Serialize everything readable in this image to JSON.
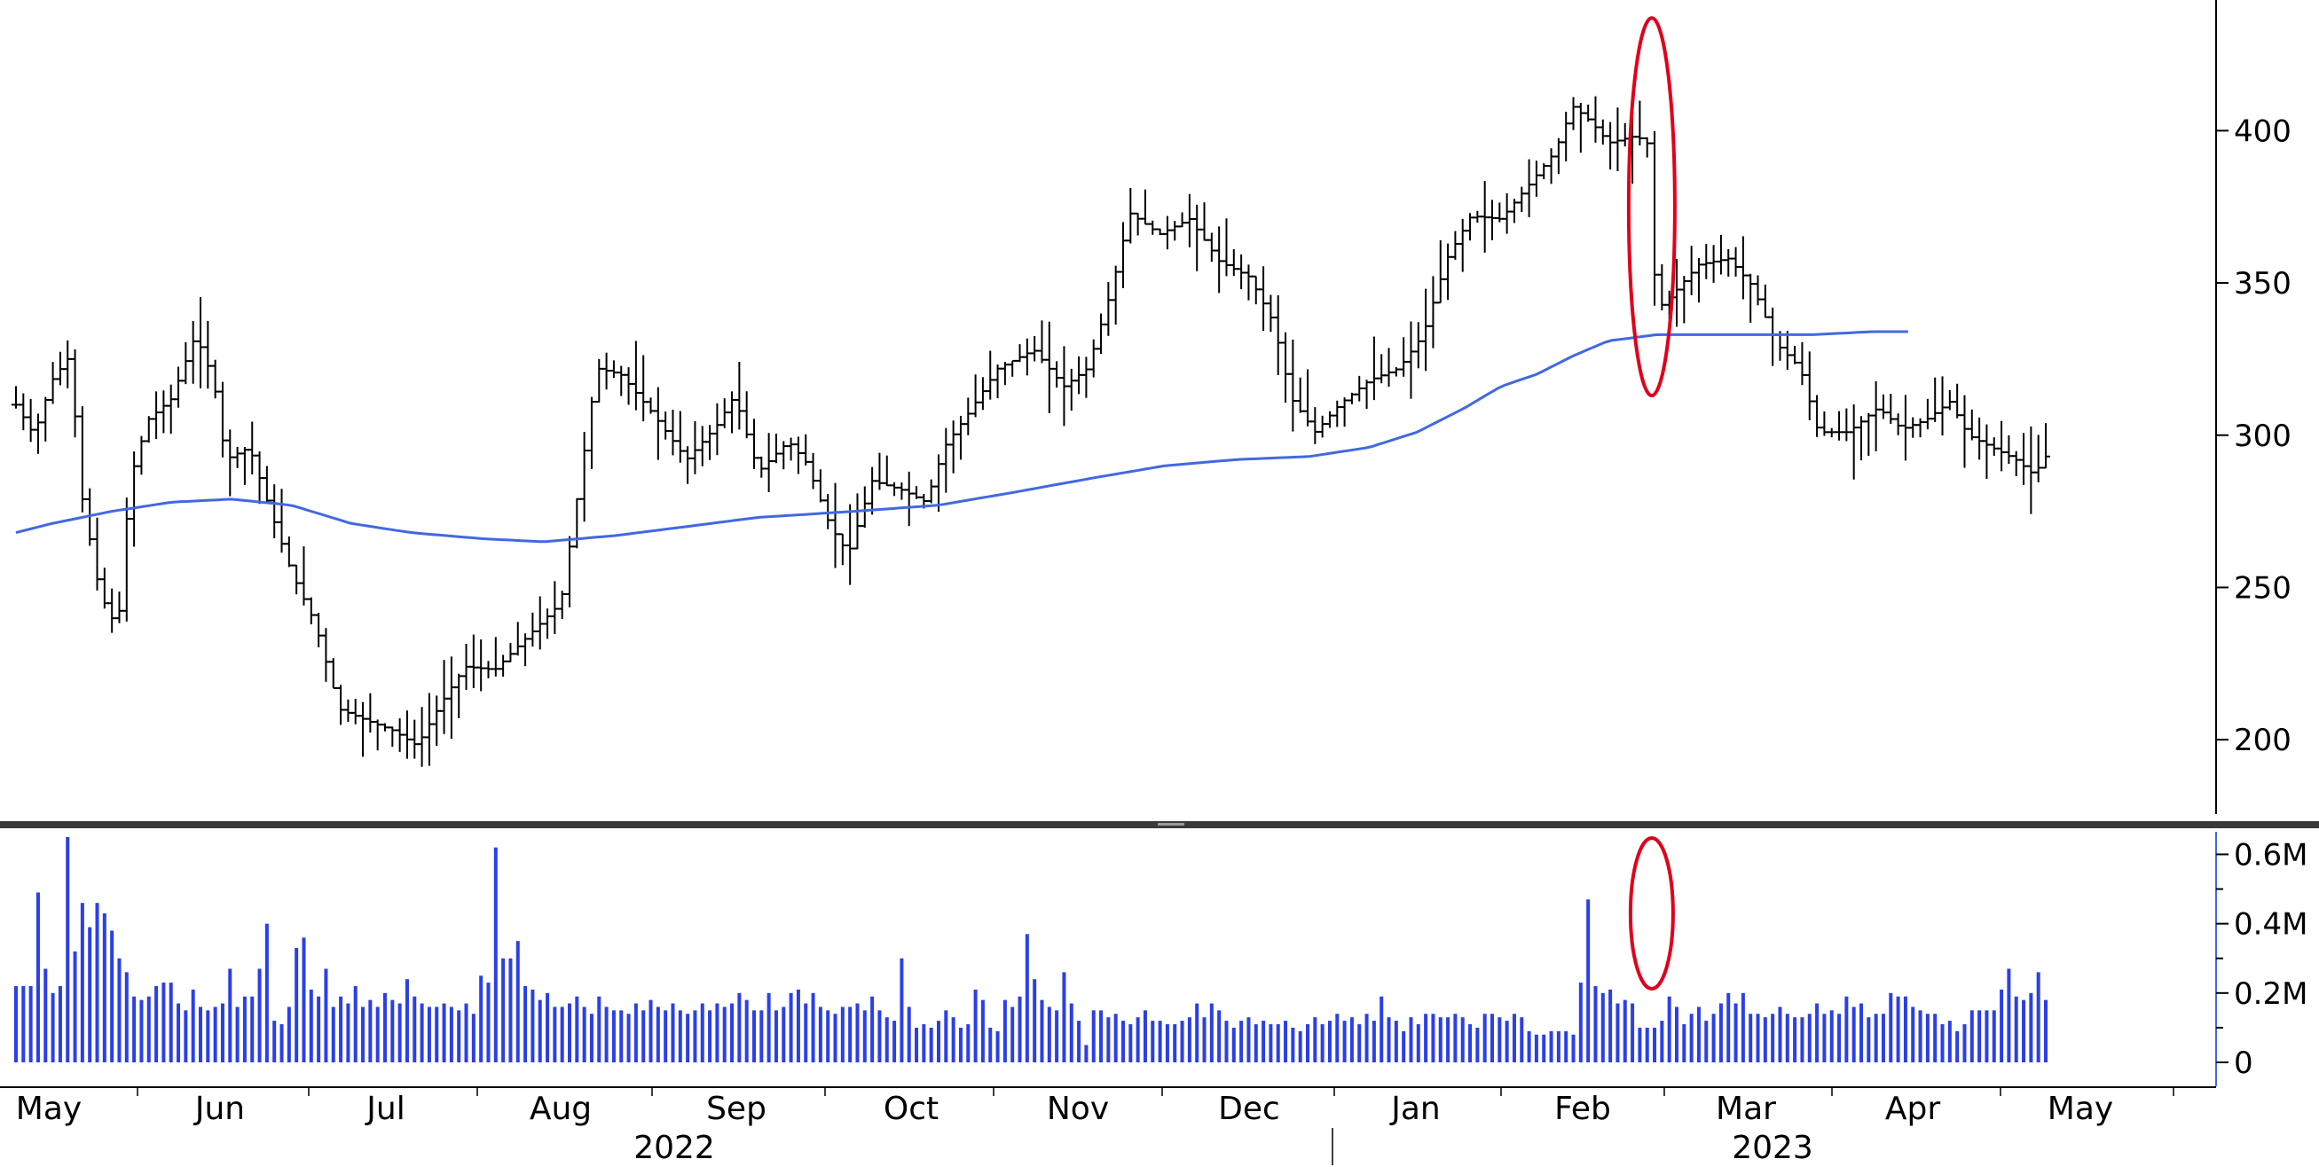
{
  "chart_data": [
    {
      "type": "ohlc",
      "panel": "price",
      "y_axis": {
        "side": "right",
        "ylim": [
          175,
          440
        ],
        "ticks": [
          200,
          250,
          300,
          350,
          400
        ],
        "tick_labels": [
          "200",
          "250",
          "300",
          "350",
          "400"
        ]
      },
      "grid": false,
      "colors": {
        "bars": "#000000",
        "moving_average": "#4169e1",
        "highlight": "#e0001b"
      },
      "moving_average": [
        {
          "t": 0,
          "v": 268
        },
        {
          "t": 0.3,
          "v": 271
        },
        {
          "t": 0.8,
          "v": 275
        },
        {
          "t": 1.3,
          "v": 278
        },
        {
          "t": 1.8,
          "v": 279
        },
        {
          "t": 2.3,
          "v": 277
        },
        {
          "t": 2.8,
          "v": 271
        },
        {
          "t": 3.3,
          "v": 268
        },
        {
          "t": 3.9,
          "v": 266
        },
        {
          "t": 4.4,
          "v": 265
        },
        {
          "t": 5,
          "v": 267
        },
        {
          "t": 5.6,
          "v": 270
        },
        {
          "t": 6.2,
          "v": 273
        },
        {
          "t": 7,
          "v": 275
        },
        {
          "t": 7.7,
          "v": 277
        },
        {
          "t": 8.3,
          "v": 281
        },
        {
          "t": 9,
          "v": 286
        },
        {
          "t": 9.6,
          "v": 290
        },
        {
          "t": 10.2,
          "v": 292
        },
        {
          "t": 10.8,
          "v": 293
        },
        {
          "t": 11.3,
          "v": 296
        },
        {
          "t": 11.7,
          "v": 301
        },
        {
          "t": 12.1,
          "v": 309
        },
        {
          "t": 12.4,
          "v": 316
        },
        {
          "t": 12.7,
          "v": 320
        },
        {
          "t": 13.0,
          "v": 326
        },
        {
          "t": 13.3,
          "v": 331
        },
        {
          "t": 13.7,
          "v": 333
        },
        {
          "t": 14.4,
          "v": 333
        },
        {
          "t": 15.0,
          "v": 333
        },
        {
          "t": 15.5,
          "v": 334
        },
        {
          "t": 15.8,
          "v": 334
        }
      ],
      "price_path": [
        {
          "t": 0,
          "v": 310
        },
        {
          "t": 0.15,
          "v": 300
        },
        {
          "t": 0.3,
          "v": 318
        },
        {
          "t": 0.45,
          "v": 326
        },
        {
          "t": 0.55,
          "v": 280
        },
        {
          "t": 0.7,
          "v": 248
        },
        {
          "t": 0.85,
          "v": 236
        },
        {
          "t": 0.95,
          "v": 285
        },
        {
          "t": 1.1,
          "v": 305
        },
        {
          "t": 1.3,
          "v": 312
        },
        {
          "t": 1.5,
          "v": 333
        },
        {
          "t": 1.65,
          "v": 318
        },
        {
          "t": 1.75,
          "v": 292
        },
        {
          "t": 1.95,
          "v": 296
        },
        {
          "t": 2.1,
          "v": 278
        },
        {
          "t": 2.3,
          "v": 255
        },
        {
          "t": 2.5,
          "v": 238
        },
        {
          "t": 2.7,
          "v": 210
        },
        {
          "t": 2.95,
          "v": 206
        },
        {
          "t": 3.15,
          "v": 203
        },
        {
          "t": 3.35,
          "v": 198
        },
        {
          "t": 3.55,
          "v": 212
        },
        {
          "t": 3.75,
          "v": 224
        },
        {
          "t": 4.0,
          "v": 223
        },
        {
          "t": 4.3,
          "v": 235
        },
        {
          "t": 4.55,
          "v": 245
        },
        {
          "t": 4.7,
          "v": 283
        },
        {
          "t": 4.85,
          "v": 322
        },
        {
          "t": 5.05,
          "v": 320
        },
        {
          "t": 5.3,
          "v": 308
        },
        {
          "t": 5.6,
          "v": 292
        },
        {
          "t": 5.85,
          "v": 303
        },
        {
          "t": 6.0,
          "v": 313
        },
        {
          "t": 6.2,
          "v": 288
        },
        {
          "t": 6.45,
          "v": 298
        },
        {
          "t": 6.6,
          "v": 291
        },
        {
          "t": 6.8,
          "v": 270
        },
        {
          "t": 6.95,
          "v": 261
        },
        {
          "t": 7.15,
          "v": 285
        },
        {
          "t": 7.4,
          "v": 282
        },
        {
          "t": 7.6,
          "v": 278
        },
        {
          "t": 7.75,
          "v": 296
        },
        {
          "t": 7.95,
          "v": 307
        },
        {
          "t": 8.2,
          "v": 322
        },
        {
          "t": 8.5,
          "v": 328
        },
        {
          "t": 8.75,
          "v": 316
        },
        {
          "t": 8.95,
          "v": 322
        },
        {
          "t": 9.15,
          "v": 348
        },
        {
          "t": 9.3,
          "v": 373
        },
        {
          "t": 9.55,
          "v": 366
        },
        {
          "t": 9.8,
          "v": 371
        },
        {
          "t": 10.05,
          "v": 357
        },
        {
          "t": 10.3,
          "v": 352
        },
        {
          "t": 10.5,
          "v": 337
        },
        {
          "t": 10.65,
          "v": 312
        },
        {
          "t": 10.85,
          "v": 301
        },
        {
          "t": 11.05,
          "v": 310
        },
        {
          "t": 11.3,
          "v": 318
        },
        {
          "t": 11.55,
          "v": 322
        },
        {
          "t": 11.75,
          "v": 333
        },
        {
          "t": 11.95,
          "v": 358
        },
        {
          "t": 12.15,
          "v": 372
        },
        {
          "t": 12.4,
          "v": 371
        },
        {
          "t": 12.65,
          "v": 383
        },
        {
          "t": 12.85,
          "v": 393
        },
        {
          "t": 13.0,
          "v": 408
        },
        {
          "t": 13.15,
          "v": 403
        },
        {
          "t": 13.3,
          "v": 396
        },
        {
          "t": 13.5,
          "v": 398
        },
        {
          "t": 13.62,
          "v": 397
        },
        {
          "t": 13.7,
          "v": 341
        },
        {
          "t": 13.85,
          "v": 347
        },
        {
          "t": 14.05,
          "v": 356
        },
        {
          "t": 14.3,
          "v": 358
        },
        {
          "t": 14.5,
          "v": 349
        },
        {
          "t": 14.7,
          "v": 330
        },
        {
          "t": 14.9,
          "v": 322
        },
        {
          "t": 15.05,
          "v": 301
        },
        {
          "t": 15.3,
          "v": 301
        },
        {
          "t": 15.55,
          "v": 309
        },
        {
          "t": 15.75,
          "v": 302
        },
        {
          "t": 15.95,
          "v": 305
        },
        {
          "t": 16.15,
          "v": 311
        },
        {
          "t": 16.3,
          "v": 300
        },
        {
          "t": 16.5,
          "v": 296
        },
        {
          "t": 16.7,
          "v": 292
        },
        {
          "t": 16.85,
          "v": 287
        },
        {
          "t": 16.95,
          "v": 293
        }
      ],
      "highlight_ellipse": {
        "center_t": 13.66,
        "y_range": [
          313,
          437
        ]
      }
    },
    {
      "type": "bar",
      "panel": "volume",
      "y_axis": {
        "side": "right",
        "ylim": [
          0,
          0.66
        ],
        "ticks": [
          0,
          0.2,
          0.4,
          0.6
        ],
        "tick_labels": [
          "0",
          "0.2M",
          "0.4M",
          "0.6M"
        ],
        "unit": "millions"
      },
      "colors": {
        "bars": "#2b3fe8",
        "highlight": "#e0001b"
      },
      "values": [
        0.22,
        0.22,
        0.22,
        0.49,
        0.27,
        0.2,
        0.22,
        0.65,
        0.32,
        0.46,
        0.39,
        0.46,
        0.43,
        0.38,
        0.3,
        0.26,
        0.19,
        0.18,
        0.19,
        0.22,
        0.23,
        0.23,
        0.17,
        0.15,
        0.21,
        0.16,
        0.15,
        0.16,
        0.17,
        0.27,
        0.16,
        0.19,
        0.19,
        0.27,
        0.4,
        0.12,
        0.11,
        0.16,
        0.33,
        0.36,
        0.21,
        0.19,
        0.27,
        0.16,
        0.19,
        0.17,
        0.22,
        0.16,
        0.18,
        0.16,
        0.2,
        0.18,
        0.17,
        0.24,
        0.19,
        0.17,
        0.16,
        0.16,
        0.17,
        0.16,
        0.15,
        0.17,
        0.14,
        0.25,
        0.23,
        0.62,
        0.3,
        0.3,
        0.35,
        0.22,
        0.21,
        0.18,
        0.2,
        0.16,
        0.16,
        0.17,
        0.19,
        0.16,
        0.14,
        0.19,
        0.16,
        0.15,
        0.15,
        0.14,
        0.17,
        0.15,
        0.18,
        0.16,
        0.15,
        0.17,
        0.15,
        0.14,
        0.15,
        0.17,
        0.15,
        0.17,
        0.16,
        0.17,
        0.2,
        0.18,
        0.15,
        0.15,
        0.2,
        0.15,
        0.16,
        0.2,
        0.21,
        0.17,
        0.2,
        0.16,
        0.15,
        0.14,
        0.16,
        0.16,
        0.17,
        0.15,
        0.19,
        0.15,
        0.13,
        0.12,
        0.3,
        0.16,
        0.1,
        0.11,
        0.1,
        0.12,
        0.15,
        0.13,
        0.1,
        0.11,
        0.21,
        0.18,
        0.1,
        0.09,
        0.18,
        0.16,
        0.19,
        0.37,
        0.24,
        0.18,
        0.16,
        0.15,
        0.26,
        0.17,
        0.12,
        0.05,
        0.15,
        0.15,
        0.13,
        0.14,
        0.12,
        0.11,
        0.13,
        0.15,
        0.12,
        0.12,
        0.11,
        0.11,
        0.12,
        0.13,
        0.17,
        0.13,
        0.17,
        0.15,
        0.12,
        0.1,
        0.12,
        0.13,
        0.11,
        0.12,
        0.11,
        0.11,
        0.12,
        0.1,
        0.09,
        0.11,
        0.13,
        0.11,
        0.12,
        0.14,
        0.12,
        0.13,
        0.11,
        0.14,
        0.12,
        0.19,
        0.13,
        0.12,
        0.09,
        0.13,
        0.11,
        0.14,
        0.14,
        0.13,
        0.13,
        0.14,
        0.13,
        0.11,
        0.1,
        0.14,
        0.14,
        0.13,
        0.12,
        0.14,
        0.13,
        0.09,
        0.08,
        0.08,
        0.09,
        0.09,
        0.09,
        0.08,
        0.23,
        0.47,
        0.22,
        0.2,
        0.21,
        0.17,
        0.18,
        0.17,
        0.1,
        0.1,
        0.1,
        0.12,
        0.19,
        0.16,
        0.11,
        0.14,
        0.16,
        0.12,
        0.14,
        0.17,
        0.2,
        0.17,
        0.2,
        0.14,
        0.14,
        0.13,
        0.14,
        0.16,
        0.14,
        0.13,
        0.13,
        0.14,
        0.17,
        0.14,
        0.15,
        0.14,
        0.19,
        0.16,
        0.17,
        0.13,
        0.14,
        0.14,
        0.2,
        0.19,
        0.19,
        0.16,
        0.15,
        0.14,
        0.14,
        0.11,
        0.12,
        0.09,
        0.11,
        0.15,
        0.15,
        0.15,
        0.15,
        0.21,
        0.27,
        0.19,
        0.18,
        0.2,
        0.26,
        0.18
      ]
    }
  ],
  "x_axis": {
    "month_labels": [
      "May",
      "Jun",
      "Jul",
      "Aug",
      "Sep",
      "Oct",
      "Nov",
      "Dec",
      "Jan",
      "Feb",
      "Mar",
      "Apr",
      "May"
    ],
    "year_labels": [
      "2022",
      "2023"
    ]
  }
}
